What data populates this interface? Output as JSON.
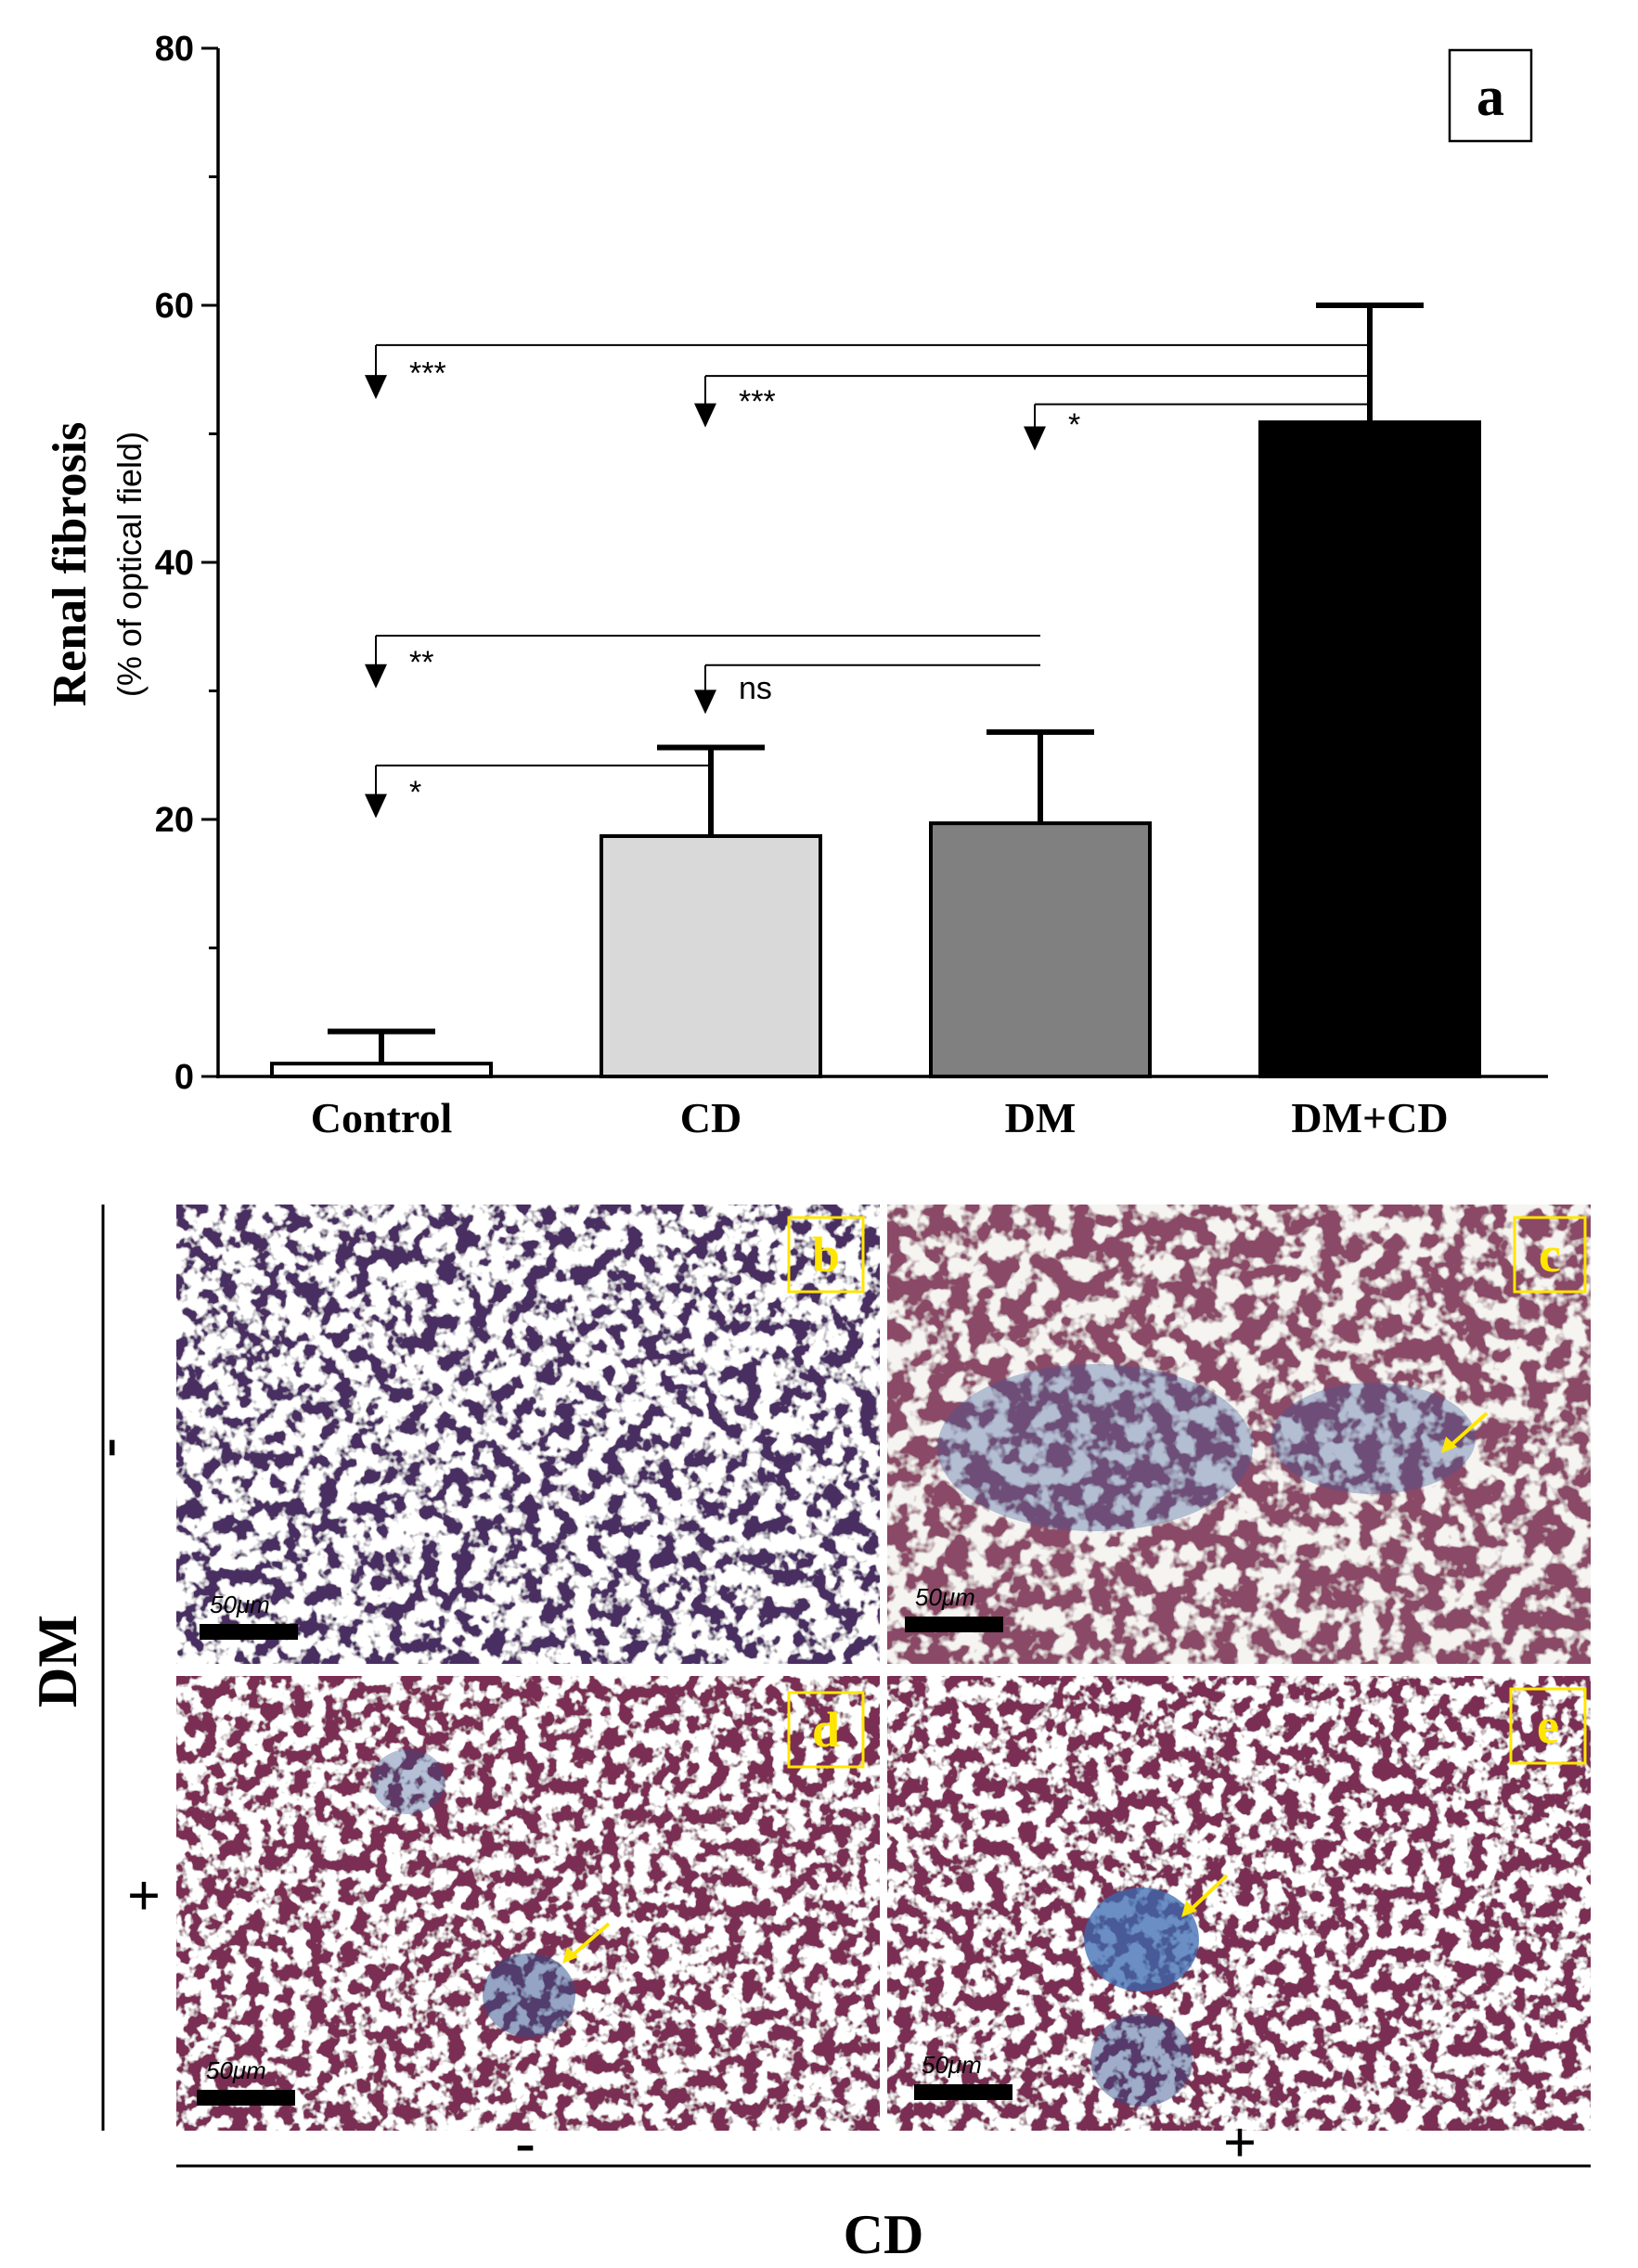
{
  "chart_data": {
    "type": "bar",
    "panel_label": "a",
    "ylabel": "Renal fibrosis",
    "ylabel_sub": "(% of optical field)",
    "ylim": [
      0,
      80
    ],
    "yticks": [
      0,
      20,
      40,
      60,
      80
    ],
    "ytick_labels": [
      "0",
      "20",
      "40",
      "60",
      "80"
    ],
    "categories": [
      "Control",
      "CD",
      "DM",
      "DM+CD"
    ],
    "values": [
      1.0,
      18.7,
      19.7,
      50.9
    ],
    "errors": [
      2.5,
      6.9,
      7.1,
      9.1
    ],
    "bar_colors": [
      "#ffffff",
      "#d9d9d9",
      "#808080",
      "#000000"
    ],
    "comparisons": [
      {
        "from": "Control",
        "to": "DM+CD",
        "label": "***"
      },
      {
        "from": "CD",
        "to": "DM+CD",
        "label": "***"
      },
      {
        "from": "DM",
        "to": "DM+CD",
        "label": "*"
      },
      {
        "from": "Control",
        "to": "DM",
        "label": "**"
      },
      {
        "from": "CD",
        "to": "DM",
        "label": "ns"
      },
      {
        "from": "Control",
        "to": "CD",
        "label": "*"
      }
    ]
  },
  "micrographs": {
    "row_axis_label": "DM",
    "col_axis_label": "CD",
    "row_labels": [
      "-",
      "+"
    ],
    "col_labels": [
      "-",
      "+"
    ],
    "scale_bar": "50μm",
    "panels": [
      {
        "label": "b",
        "dm": "-",
        "cd": "-",
        "stain": "purple",
        "fibrosis_arrow": false
      },
      {
        "label": "c",
        "dm": "-",
        "cd": "+",
        "stain": "red-blue",
        "fibrosis_arrow": true
      },
      {
        "label": "d",
        "dm": "+",
        "cd": "-",
        "stain": "red",
        "fibrosis_arrow": true
      },
      {
        "label": "e",
        "dm": "+",
        "cd": "+",
        "stain": "red",
        "fibrosis_arrow": true
      }
    ],
    "colors": {
      "label_box": "#ffe600",
      "arrow": "#ffe600"
    }
  }
}
